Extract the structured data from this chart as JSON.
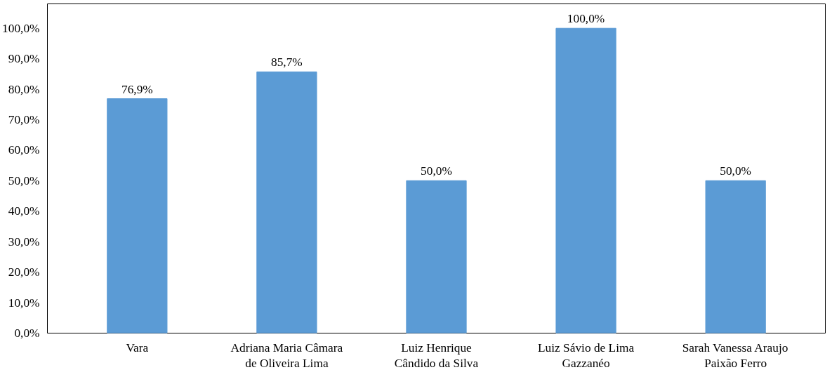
{
  "chart_data": {
    "type": "bar",
    "categories": [
      "Vara",
      "Adriana Maria Câmara de Oliveira Lima",
      "Luiz Henrique Cândido da Silva",
      "Luiz Sávio de Lima Gazzanéo",
      "Sarah Vanessa Araujo Paixão Ferro"
    ],
    "values": [
      76.9,
      85.7,
      50.0,
      100.0,
      50.0
    ],
    "value_labels": [
      "76,9%",
      "85,7%",
      "50,0%",
      "100,0%",
      "50,0%"
    ],
    "color": "#5b9bd5",
    "ylim": [
      0,
      108
    ],
    "yticks": [
      {
        "value": 0,
        "label": "0,0%"
      },
      {
        "value": 10,
        "label": "10,0%"
      },
      {
        "value": 20,
        "label": "20,0%"
      },
      {
        "value": 30,
        "label": "30,0%"
      },
      {
        "value": 40,
        "label": "40,0%"
      },
      {
        "value": 50,
        "label": "50,0%"
      },
      {
        "value": 60,
        "label": "60,0%"
      },
      {
        "value": 70,
        "label": "70,0%"
      },
      {
        "value": 80,
        "label": "80,0%"
      },
      {
        "value": 90,
        "label": "90,0%"
      },
      {
        "value": 100,
        "label": "100,0%"
      }
    ],
    "grid": false
  }
}
